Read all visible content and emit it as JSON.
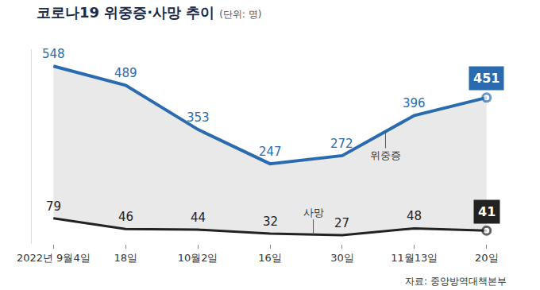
{
  "chart_data": {
    "type": "line",
    "title": "코로나19 위중증·사망 추이",
    "subtitle": "(단위: 명)",
    "source": "자료: 중앙방역대책본부",
    "categories": [
      "2022년 9월4일",
      "18일",
      "10월2일",
      "16일",
      "30일",
      "11월13일",
      "20일"
    ],
    "series": [
      {
        "name": "사망",
        "color": "#222222",
        "values": [
          79,
          46,
          44,
          32,
          27,
          48,
          41
        ]
      },
      {
        "name": "위중증",
        "color": "#2a6bb0",
        "values": [
          548,
          489,
          353,
          247,
          272,
          396,
          451
        ]
      }
    ],
    "ylim": [
      0,
      600
    ],
    "tick_labels": "x",
    "data_labels": true,
    "grid": false
  }
}
